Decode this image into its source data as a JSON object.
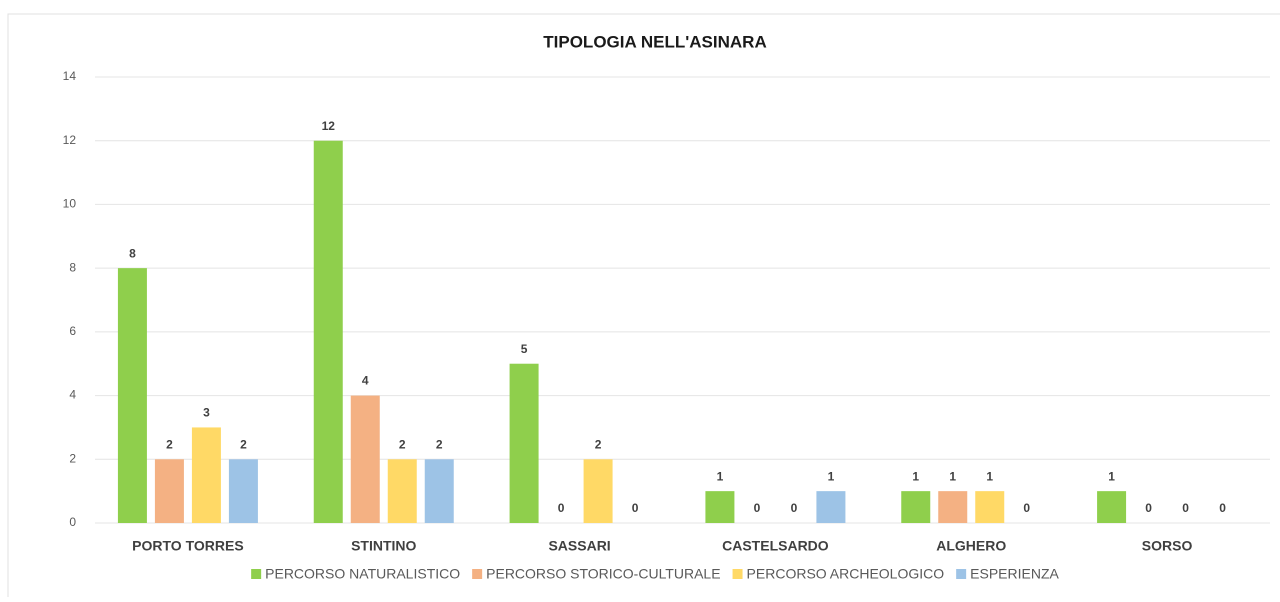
{
  "chart_data": {
    "type": "bar",
    "title": "TIPOLOGIA NELL'ASINARA",
    "categories": [
      "PORTO TORRES",
      "STINTINO",
      "SASSARI",
      "CASTELSARDO",
      "ALGHERO",
      "SORSO"
    ],
    "series": [
      {
        "name": "PERCORSO NATURALISTICO",
        "color": "#8fcf4c",
        "values": [
          8,
          12,
          5,
          1,
          1,
          1
        ]
      },
      {
        "name": "PERCORSO STORICO-CULTURALE",
        "color": "#f4b183",
        "values": [
          2,
          4,
          0,
          0,
          1,
          0
        ]
      },
      {
        "name": "PERCORSO ARCHEOLOGICO",
        "color": "#ffd966",
        "values": [
          3,
          2,
          2,
          0,
          1,
          0
        ]
      },
      {
        "name": "ESPERIENZA",
        "color": "#9dc3e6",
        "values": [
          2,
          2,
          0,
          1,
          0,
          0
        ]
      }
    ],
    "ylim": [
      0,
      14
    ],
    "yticks": [
      0,
      2,
      4,
      6,
      8,
      10,
      12,
      14
    ],
    "grid": true,
    "legend": "bottom"
  }
}
